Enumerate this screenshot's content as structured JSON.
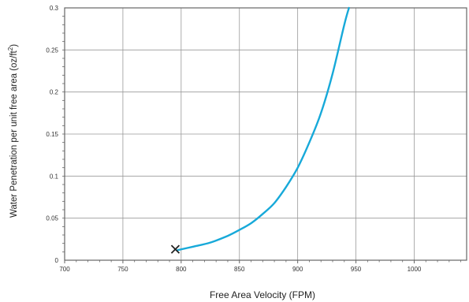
{
  "chart_data": {
    "type": "line",
    "title": "",
    "xlabel": "Free Area Velocity (FPM)",
    "ylabel": {
      "main": "Water Penetration per unit free area  (oz/ft",
      "sup": "2",
      "tail": ")"
    },
    "xlim": [
      700,
      1045
    ],
    "ylim": [
      0,
      0.3
    ],
    "x_ticks": [
      "700",
      "750",
      "800",
      "850",
      "900",
      "950",
      "1000"
    ],
    "y_ticks": [
      "0",
      "0.05",
      "0.1",
      "0.15",
      "0.2",
      "0.25",
      "0.3"
    ],
    "grid": true,
    "series": [
      {
        "color": "#17a9d9",
        "x": [
          797,
          810,
          825,
          840,
          850,
          860,
          870,
          880,
          890,
          900,
          910,
          920,
          930,
          940,
          944
        ],
        "y": [
          0.012,
          0.016,
          0.021,
          0.029,
          0.036,
          0.044,
          0.055,
          0.068,
          0.087,
          0.11,
          0.14,
          0.175,
          0.222,
          0.28,
          0.3
        ]
      }
    ],
    "marker": {
      "symbol": "x",
      "x": 795,
      "y": 0.013,
      "color": "#222222"
    }
  }
}
